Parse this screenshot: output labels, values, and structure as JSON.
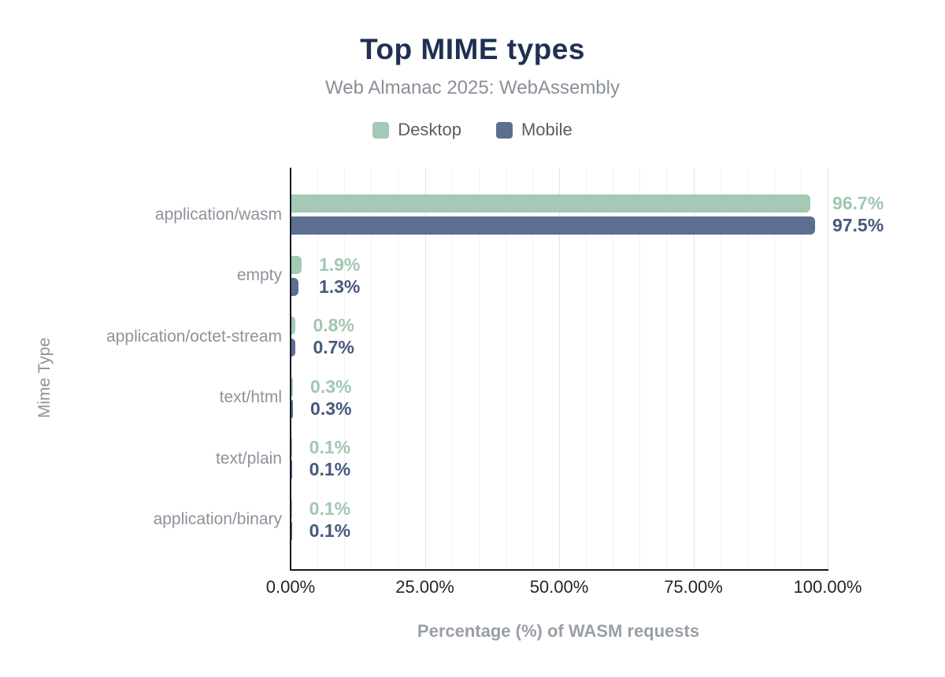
{
  "header": {
    "title": "Top MIME types",
    "subtitle": "Web Almanac 2025: WebAssembly"
  },
  "legend": {
    "items": [
      {
        "name": "Desktop",
        "color": "#a4c9b5"
      },
      {
        "name": "Mobile",
        "color": "#5c6f90"
      }
    ]
  },
  "colors": {
    "title": "#1f3052",
    "subtitle": "#8a9097",
    "axis_line": "#16191f",
    "axis_text": "#8d939b",
    "desktop": "#a4c9b5",
    "mobile": "#5c6f90",
    "desktop_label": "#a0c7b2",
    "mobile_label": "#46597d"
  },
  "chart_data": {
    "type": "bar",
    "orientation": "horizontal",
    "title": "Top MIME types",
    "subtitle": "Web Almanac 2025: WebAssembly",
    "categories": [
      "application/wasm",
      "empty",
      "application/octet-stream",
      "text/html",
      "text/plain",
      "application/binary"
    ],
    "series": [
      {
        "name": "Desktop",
        "color": "#a4c9b5",
        "label_color": "#a0c7b2",
        "values": [
          96.7,
          1.9,
          0.8,
          0.3,
          0.1,
          0.1
        ],
        "labels": [
          "96.7%",
          "1.9%",
          "0.8%",
          "0.3%",
          "0.1%",
          "0.1%"
        ]
      },
      {
        "name": "Mobile",
        "color": "#5c6f90",
        "label_color": "#46597d",
        "values": [
          97.5,
          1.3,
          0.7,
          0.3,
          0.1,
          0.1
        ],
        "labels": [
          "97.5%",
          "1.3%",
          "0.7%",
          "0.3%",
          "0.1%",
          "0.1%"
        ]
      }
    ],
    "xlabel": "Percentage (%) of WASM requests",
    "ylabel": "Mime Type",
    "xlim": [
      0,
      100
    ],
    "x_ticks": [
      {
        "value": 0,
        "label": "0.00%"
      },
      {
        "value": 25,
        "label": "25.00%"
      },
      {
        "value": 50,
        "label": "50.00%"
      },
      {
        "value": 75,
        "label": "75.00%"
      },
      {
        "value": 100,
        "label": "100.00%"
      }
    ],
    "grid": {
      "vertical_minor_step": 5,
      "vertical_major_step": 25
    },
    "legend_position": "top"
  }
}
